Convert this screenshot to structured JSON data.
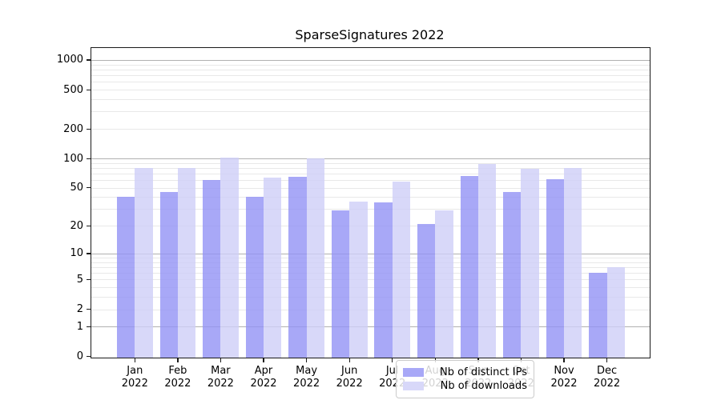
{
  "title": "SparseSignatures 2022",
  "legend": {
    "items": [
      {
        "label": "Nb of distinct IPs",
        "color": "#a8a8f7"
      },
      {
        "label": "Nb of downloads",
        "color": "#d8d8f9"
      }
    ]
  },
  "y_axis": {
    "tick_labels": [
      "1000",
      "500",
      "200",
      "100",
      "50",
      "20",
      "10",
      "5",
      "2",
      "1",
      "0"
    ]
  },
  "x_axis": {
    "months": [
      "Jan",
      "Feb",
      "Mar",
      "Apr",
      "May",
      "Jun",
      "Jul",
      "Aug",
      "Sep",
      "Oct",
      "Nov",
      "Dec"
    ],
    "year": "2022"
  },
  "chart_data": {
    "type": "bar",
    "title": "SparseSignatures 2022",
    "categories": [
      "Jan 2022",
      "Feb 2022",
      "Mar 2022",
      "Apr 2022",
      "May 2022",
      "Jun 2022",
      "Jul 2022",
      "Aug 2022",
      "Sep 2022",
      "Oct 2022",
      "Nov 2022",
      "Dec 2022"
    ],
    "series": [
      {
        "name": "Nb of distinct IPs",
        "color": "#a8a8f7",
        "color_rgba": "rgba(146,146,245,0.8)",
        "values": [
          40,
          45,
          60,
          40,
          65,
          29,
          35,
          21,
          66,
          45,
          61,
          6
        ]
      },
      {
        "name": "Nb of downloads",
        "color": "#d8d8f9",
        "color_rgba": "rgba(206,206,248,0.8)",
        "values": [
          80,
          80,
          101,
          63,
          100,
          36,
          58,
          29,
          88,
          78,
          80,
          7
        ]
      }
    ],
    "xlabel": "",
    "ylabel": "",
    "yscale": "log1p",
    "ylim": [
      0,
      1310
    ],
    "yticks": [
      0,
      1,
      2,
      5,
      10,
      20,
      50,
      100,
      200,
      500,
      1000
    ],
    "grid": true,
    "gridline_major_color": "#b0b0b0",
    "gridline_minor_color": "#e8e8e8",
    "legend_position": "lower center"
  }
}
